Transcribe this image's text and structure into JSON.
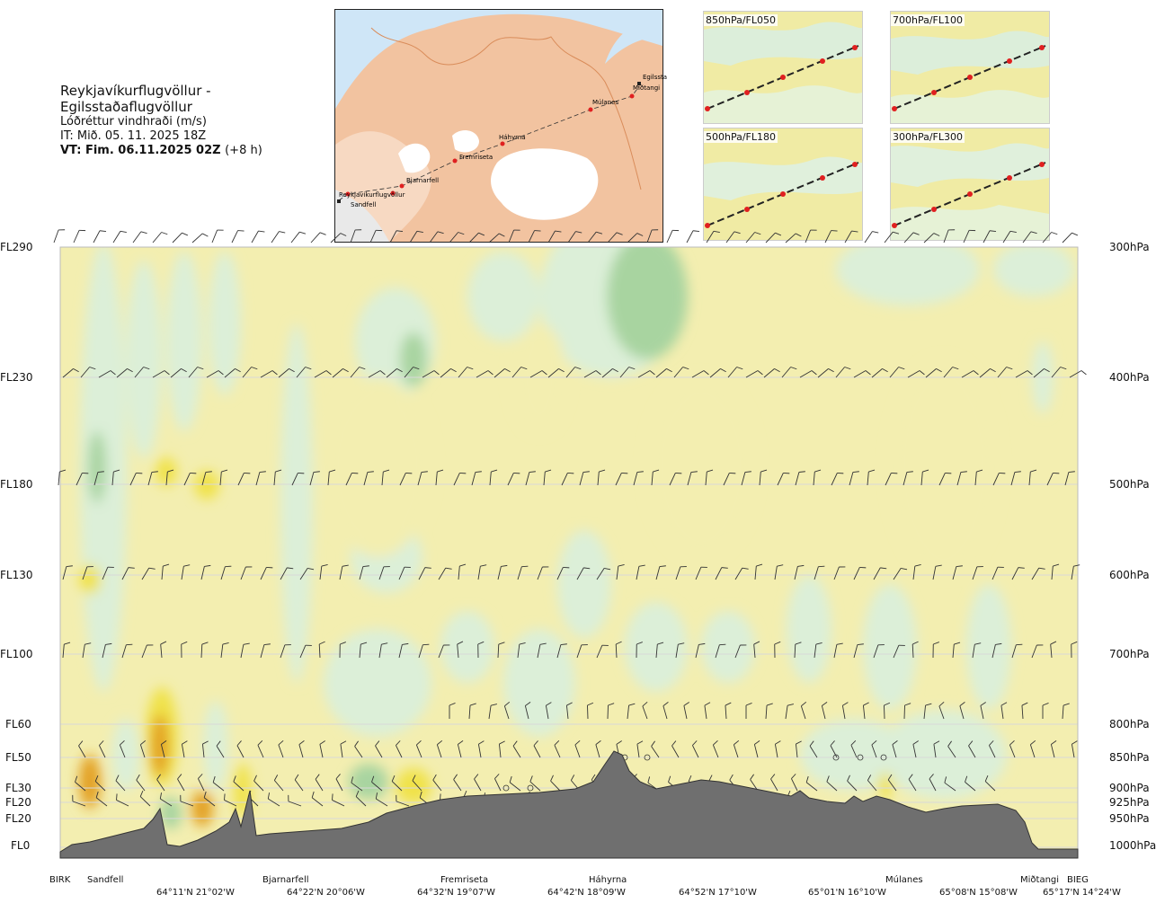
{
  "header": {
    "route": "Reykjavíkurflugvöllur - Egilsstaðaflugvöllur",
    "parameter": "Lóðréttur vindhraði (m/s)",
    "issue_time": "IT: Mið. 05. 11. 2025 18Z",
    "valid_time": "VT: Fim. 06.11.2025 02Z",
    "valid_offset": "(+8 h)"
  },
  "map": {
    "places": [
      "Reykjavíkurflugvöllur",
      "Sandfell",
      "Bjarnarfell",
      "Fremriseta",
      "Háhyrna",
      "Múlanes",
      "Miðtangi",
      "Egilssta"
    ]
  },
  "insets": [
    {
      "label": "850hPa/FL050"
    },
    {
      "label": "700hPa/FL100"
    },
    {
      "label": "500hPa/FL180"
    },
    {
      "label": "300hPa/FL300"
    }
  ],
  "colors": {
    "updraft_weak": "#f3eeb0",
    "updraft_moderate": "#f0e24a",
    "updraft_strong": "#e3a020",
    "downdraft_weak": "#dcefd8",
    "downdraft_moderate": "#a8d4a0",
    "downdraft_strong": "#4aa85c",
    "terrain": "#6f6f6f"
  },
  "chart_data": {
    "type": "heatmap",
    "title": "Reykjavíkurflugvöllur - Egilsstaðaflugvöllur",
    "quantity": "Lóðréttur vindhraði (m/s)",
    "y_axis_left": {
      "ticks": [
        "FL290",
        "FL230",
        "FL180",
        "FL130",
        "FL100",
        "FL60",
        "FL50",
        "FL30",
        "FL20",
        "FL20",
        "FL0"
      ]
    },
    "y_axis_right": {
      "ticks": [
        "300hPa",
        "400hPa",
        "500hPa",
        "600hPa",
        "700hPa",
        "800hPa",
        "850hPa",
        "900hPa",
        "925hPa",
        "950hPa",
        "1000hPa"
      ]
    },
    "pressure_levels_hpa": [
      300,
      400,
      500,
      600,
      700,
      800,
      850,
      900,
      925,
      950,
      1000
    ],
    "waypoints": [
      "BIRK",
      "Sandfell",
      "Bjarnarfell",
      "Fremriseta",
      "Háhyrna",
      "Múlanes",
      "Miðtangi",
      "BIEG"
    ],
    "coordinates": [
      "64°11'N 21°02'W",
      "64°22'N 20°06'W",
      "64°32'N 19°07'W",
      "64°42'N 18°09'W",
      "64°52'N 17°10'W",
      "65°01'N 16°10'W",
      "65°08'N 15°08'W",
      "65°17'N 14°24'W"
    ],
    "grid": true
  }
}
